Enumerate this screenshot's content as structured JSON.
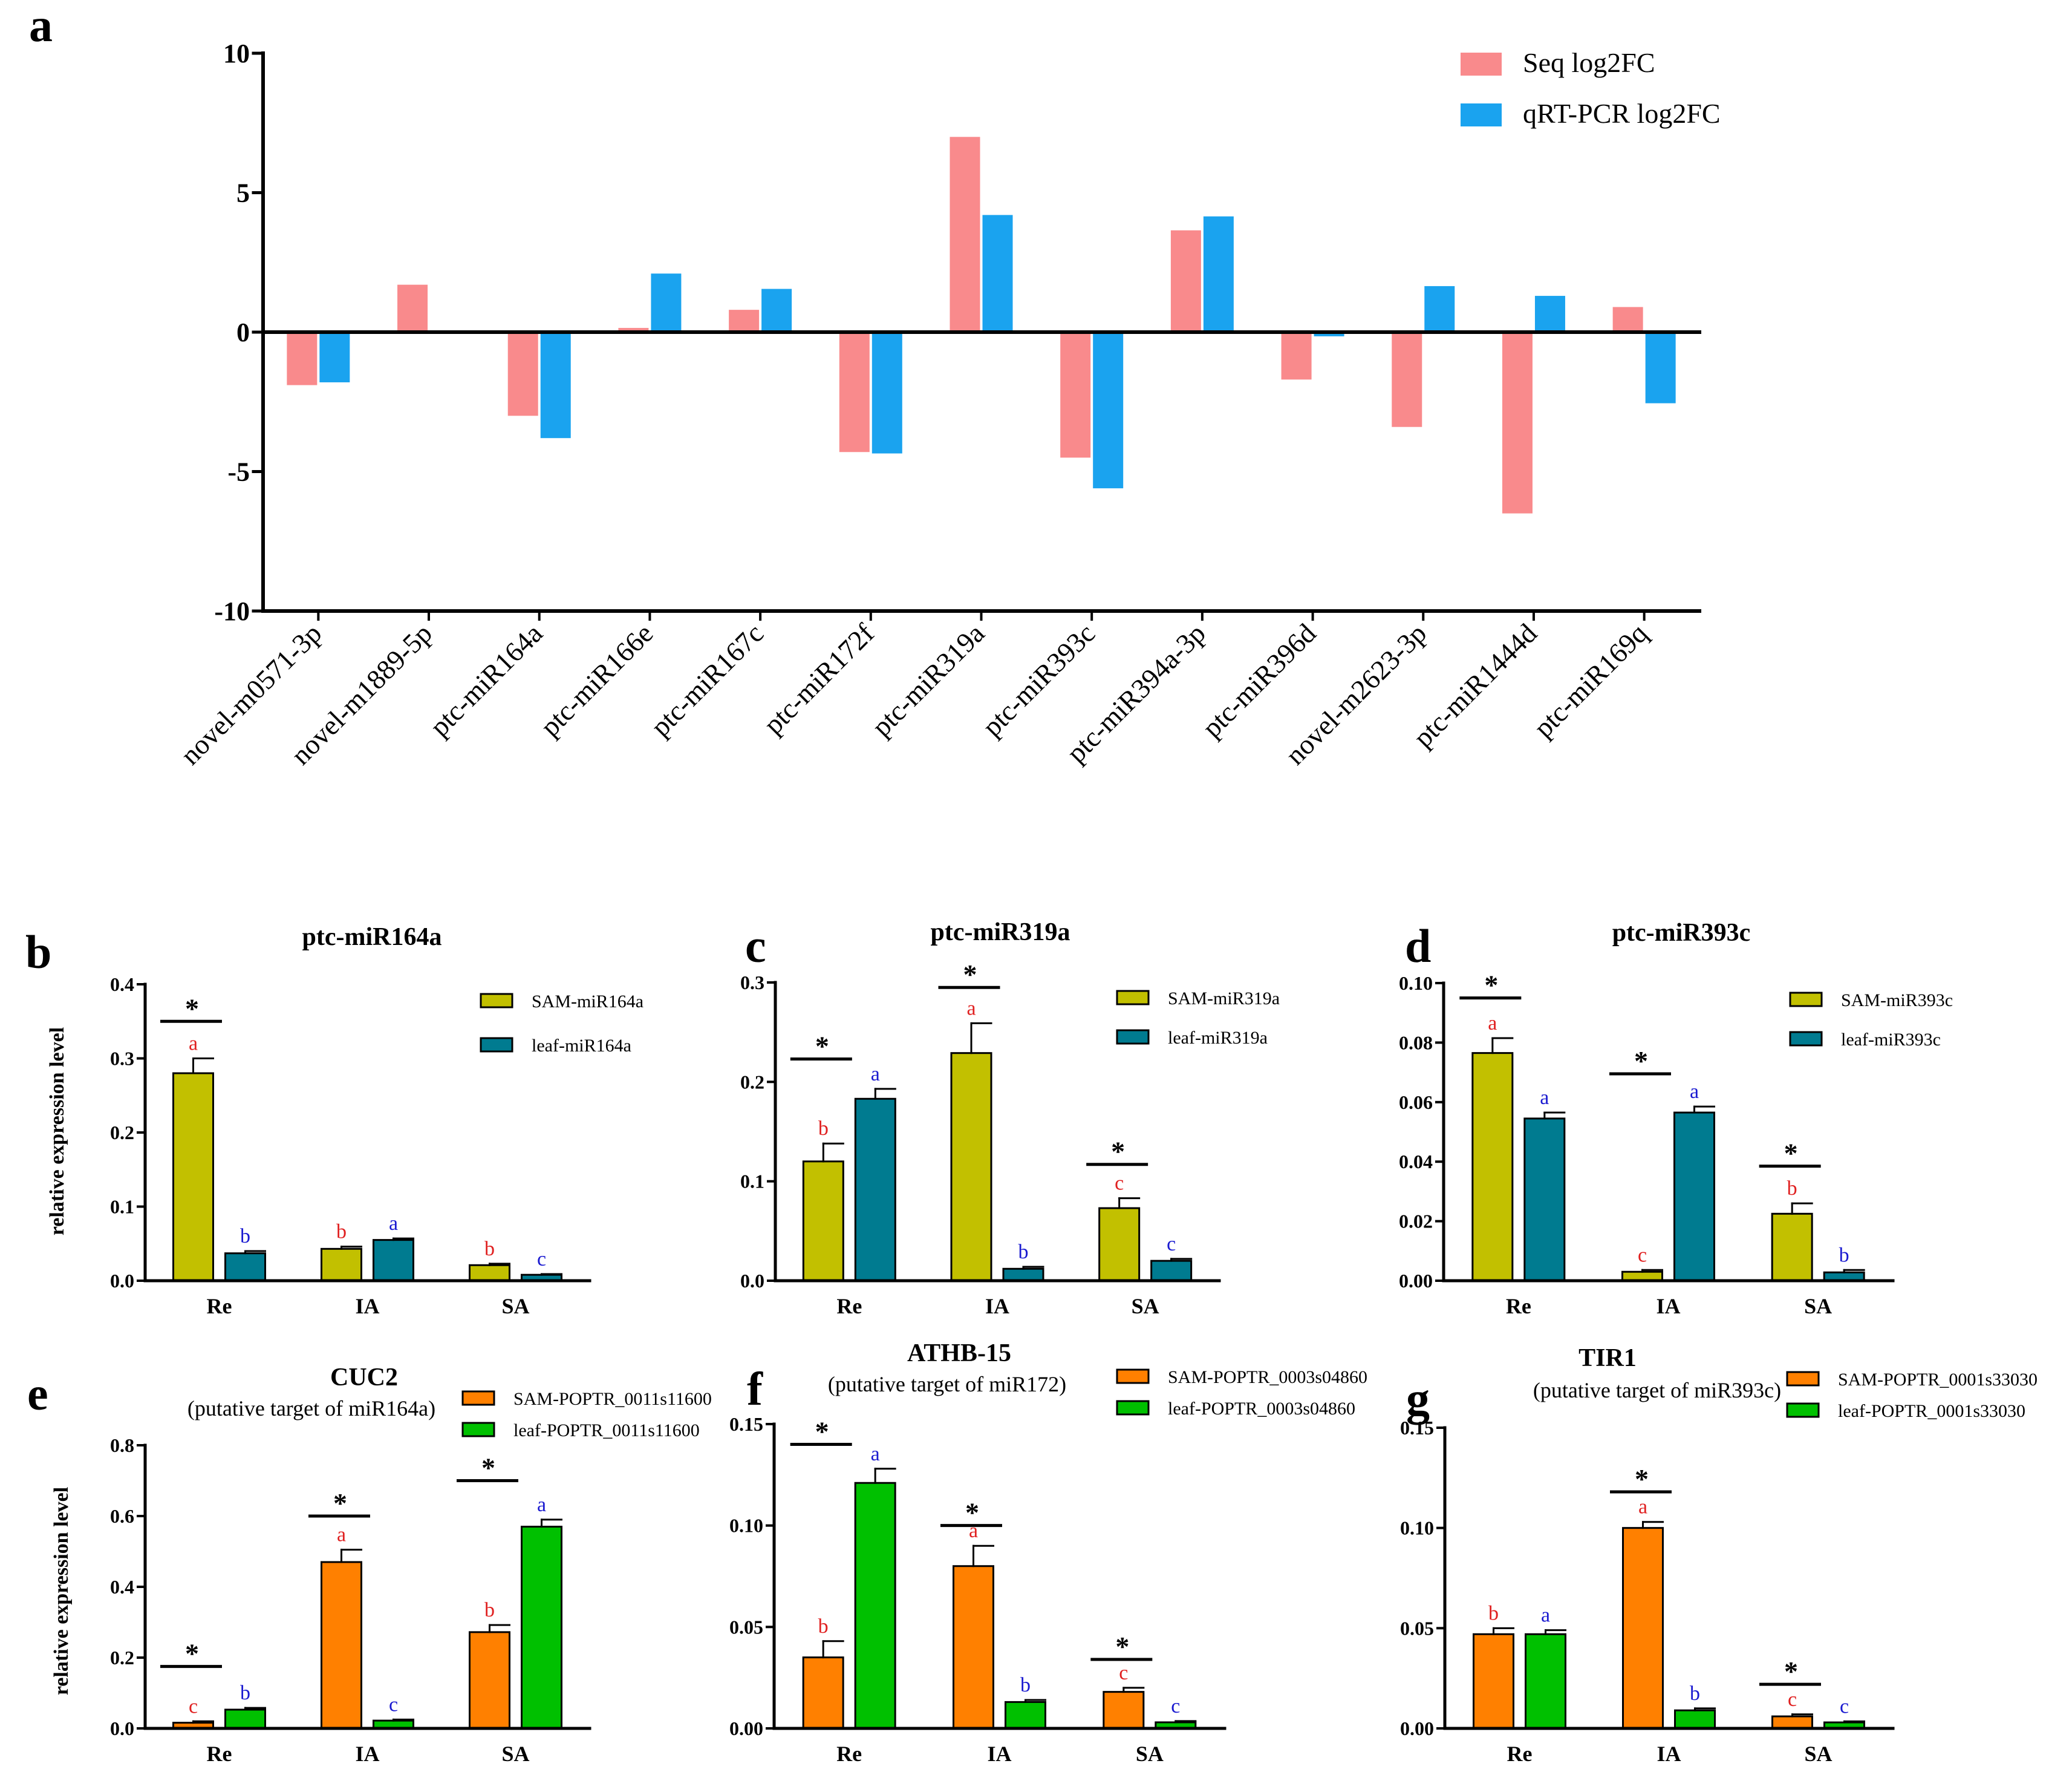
{
  "chart_data": [
    {
      "panel": "a",
      "type": "bar",
      "title": "",
      "xlabel": "",
      "ylabel": "",
      "ylim": [
        -10,
        10
      ],
      "yticks": [
        10,
        5,
        0,
        -5,
        -10
      ],
      "categories": [
        "novel-m0571-3p",
        "novel-m1889-5p",
        "ptc-miR164a",
        "ptc-miR166e",
        "ptc-miR167c",
        "ptc-miR172f",
        "ptc-miR319a",
        "ptc-miR393c",
        "ptc-miR394a-3p",
        "ptc-miR396d",
        "novel-m2623-3p",
        "ptc-miR1444d",
        "ptc-miR169q"
      ],
      "series": [
        {
          "name": "Seq log2FC",
          "color": "#f98a8c",
          "values": [
            -1.9,
            1.7,
            -3.0,
            0.15,
            0.8,
            -4.3,
            7.0,
            -4.5,
            3.65,
            -1.7,
            -3.4,
            -6.5,
            0.9
          ]
        },
        {
          "name": "qRT-PCR log2FC",
          "color": "#1aa3ef",
          "values": [
            -1.8,
            0.05,
            -3.8,
            2.1,
            1.55,
            -4.35,
            4.2,
            -5.6,
            4.15,
            -0.15,
            1.65,
            1.3,
            -2.55
          ]
        }
      ]
    },
    {
      "panel": "b",
      "type": "bar",
      "title": "ptc-miR164a",
      "subtitle": "",
      "ylabel": "relative expression level",
      "ylim": [
        0,
        0.4
      ],
      "yticks": [
        "0.0",
        "0.1",
        "0.2",
        "0.3",
        "0.4"
      ],
      "categories": [
        "Re",
        "IA",
        "SA"
      ],
      "series": [
        {
          "name": "SAM-miR164a",
          "color": "#c2c000",
          "values": [
            0.28,
            0.043,
            0.021
          ],
          "errors": [
            0.02,
            0.003,
            0.002
          ],
          "letters": [
            "a",
            "b",
            "b"
          ]
        },
        {
          "name": "leaf-miR164a",
          "color": "#007b90",
          "values": [
            0.037,
            0.055,
            0.008
          ],
          "errors": [
            0.003,
            0.002,
            0.001
          ],
          "letters": [
            "b",
            "a",
            "c"
          ]
        }
      ],
      "significance": [
        {
          "category": "Re",
          "label": "*",
          "level": 0.35
        }
      ]
    },
    {
      "panel": "c",
      "type": "bar",
      "title": "ptc-miR319a",
      "subtitle": "",
      "ylabel": "",
      "ylim": [
        0,
        0.3
      ],
      "yticks": [
        "0.0",
        "0.1",
        "0.2",
        "0.3"
      ],
      "categories": [
        "Re",
        "IA",
        "SA"
      ],
      "series": [
        {
          "name": "SAM-miR319a",
          "color": "#c2c000",
          "values": [
            0.12,
            0.229,
            0.073
          ],
          "errors": [
            0.018,
            0.03,
            0.01
          ],
          "letters": [
            "b",
            "a",
            "c"
          ]
        },
        {
          "name": "leaf-miR319a",
          "color": "#007b90",
          "values": [
            0.183,
            0.012,
            0.02
          ],
          "errors": [
            0.01,
            0.002,
            0.002
          ],
          "letters": [
            "a",
            "b",
            "c"
          ]
        }
      ],
      "significance": [
        {
          "category": "Re",
          "label": "*",
          "level": 0.223
        },
        {
          "category": "IA",
          "label": "*",
          "level": 0.295
        },
        {
          "category": "SA",
          "label": "*",
          "level": 0.117
        }
      ]
    },
    {
      "panel": "d",
      "type": "bar",
      "title": "ptc-miR393c",
      "subtitle": "",
      "ylabel": "",
      "ylim": [
        0,
        0.1
      ],
      "yticks": [
        "0.00",
        "0.02",
        "0.04",
        "0.06",
        "0.08",
        "0.10"
      ],
      "categories": [
        "Re",
        "IA",
        "SA"
      ],
      "series": [
        {
          "name": "SAM-miR393c",
          "color": "#c2c000",
          "values": [
            0.0765,
            0.003,
            0.0225
          ],
          "errors": [
            0.005,
            0.0006,
            0.0035
          ],
          "letters": [
            "a",
            "c",
            "b"
          ]
        },
        {
          "name": "leaf-miR393c",
          "color": "#007b90",
          "values": [
            0.0545,
            0.0565,
            0.0028
          ],
          "errors": [
            0.002,
            0.002,
            0.0008
          ],
          "letters": [
            "a",
            "a",
            "b"
          ]
        }
      ],
      "significance": [
        {
          "category": "Re",
          "label": "*",
          "level": 0.095
        },
        {
          "category": "IA",
          "label": "*",
          "level": 0.0695
        },
        {
          "category": "SA",
          "label": "*",
          "level": 0.0385
        }
      ]
    },
    {
      "panel": "e",
      "type": "bar",
      "title": "CUC2",
      "subtitle": "(putative target of miR164a)",
      "ylabel": "relative expression level",
      "ylim": [
        0,
        0.8
      ],
      "yticks": [
        "0.0",
        "0.2",
        "0.4",
        "0.6",
        "0.8"
      ],
      "categories": [
        "Re",
        "IA",
        "SA"
      ],
      "series": [
        {
          "name": "SAM-POPTR_0011s11600",
          "color": "#ff8000",
          "values": [
            0.016,
            0.47,
            0.272
          ],
          "errors": [
            0.004,
            0.035,
            0.02
          ],
          "letters": [
            "c",
            "a",
            "b"
          ]
        },
        {
          "name": "leaf-POPTR_0011s11600",
          "color": "#00c000",
          "values": [
            0.053,
            0.022,
            0.57
          ],
          "errors": [
            0.005,
            0.003,
            0.02
          ],
          "letters": [
            "b",
            "c",
            "a"
          ]
        }
      ],
      "significance": [
        {
          "category": "Re",
          "label": "*",
          "level": 0.175
        },
        {
          "category": "IA",
          "label": "*",
          "level": 0.6
        },
        {
          "category": "SA",
          "label": "*",
          "level": 0.7
        }
      ]
    },
    {
      "panel": "f",
      "type": "bar",
      "title": "ATHB-15",
      "subtitle": "(putative target of miR172)",
      "ylabel": "",
      "ylim": [
        0,
        0.15
      ],
      "yticks": [
        "0.00",
        "0.05",
        "0.10",
        "0.15"
      ],
      "categories": [
        "Re",
        "IA",
        "SA"
      ],
      "series": [
        {
          "name": "SAM-POPTR_0003s04860",
          "color": "#ff8000",
          "values": [
            0.035,
            0.08,
            0.018
          ],
          "errors": [
            0.008,
            0.01,
            0.002
          ],
          "letters": [
            "b",
            "a",
            "c"
          ]
        },
        {
          "name": "leaf-POPTR_0003s04860",
          "color": "#00c000",
          "values": [
            0.121,
            0.013,
            0.003
          ],
          "errors": [
            0.007,
            0.001,
            0.0006
          ],
          "letters": [
            "a",
            "b",
            "c"
          ]
        }
      ],
      "significance": [
        {
          "category": "Re",
          "label": "*",
          "level": 0.14
        },
        {
          "category": "IA",
          "label": "*",
          "level": 0.1
        },
        {
          "category": "SA",
          "label": "*",
          "level": 0.034
        }
      ]
    },
    {
      "panel": "g",
      "type": "bar",
      "title": "TIR1",
      "subtitle": "(putative target of miR393c)",
      "ylabel": "",
      "ylim": [
        0,
        0.15
      ],
      "yticks": [
        "0.00",
        "0.05",
        "0.10",
        "0.15"
      ],
      "categories": [
        "Re",
        "IA",
        "SA"
      ],
      "series": [
        {
          "name": "SAM-POPTR_0001s33030",
          "color": "#ff8000",
          "values": [
            0.047,
            0.1,
            0.006
          ],
          "errors": [
            0.003,
            0.003,
            0.001
          ],
          "letters": [
            "b",
            "a",
            "c"
          ]
        },
        {
          "name": "leaf-POPTR_0001s33030",
          "color": "#00c000",
          "values": [
            0.047,
            0.009,
            0.003
          ],
          "errors": [
            0.002,
            0.001,
            0.0005
          ],
          "letters": [
            "a",
            "b",
            "c"
          ]
        }
      ],
      "significance": [
        {
          "category": "IA",
          "label": "*",
          "level": 0.118
        },
        {
          "category": "SA",
          "label": "*",
          "level": 0.022
        }
      ]
    }
  ]
}
